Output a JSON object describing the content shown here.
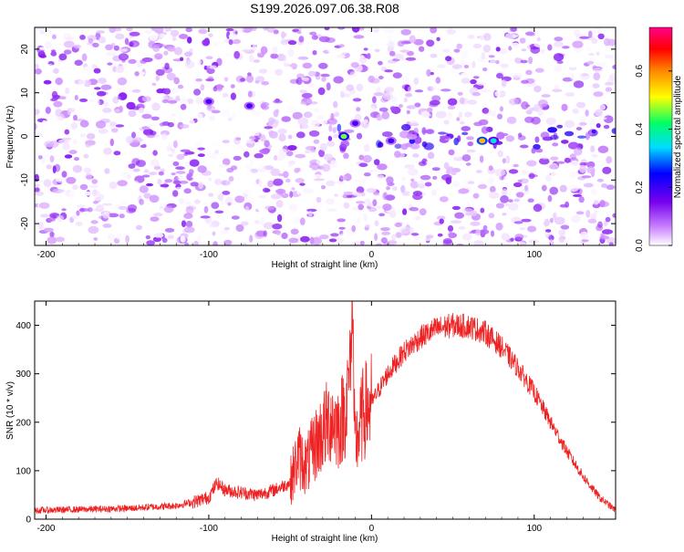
{
  "title": "S199.2026.097.06.38.R08",
  "chart_data": [
    {
      "type": "heatmap",
      "title": "",
      "xlabel": "Height of straight line (km)",
      "ylabel": "Frequency (Hz)",
      "xlim": [
        -207,
        150
      ],
      "ylim": [
        -25,
        25
      ],
      "x_ticks": [
        -200,
        -100,
        0,
        100
      ],
      "y_ticks": [
        -20,
        -10,
        0,
        10,
        20
      ],
      "colorbar": {
        "label": "Normalized spectral amplitude",
        "range": [
          0.0,
          0.75
        ],
        "ticks": [
          0.0,
          0.2,
          0.4,
          0.6
        ],
        "tick_labels": [
          "0.0",
          "0.2",
          "0.4",
          "0.6"
        ],
        "colors": [
          "#ffffff",
          "#cc88ff",
          "#7700ee",
          "#0000ff",
          "#00ddff",
          "#00ff66",
          "#ffff00",
          "#ff8800",
          "#ff0000",
          "#ff0088"
        ]
      },
      "features": [
        {
          "x": -17,
          "y": 0,
          "amplitude": 0.45
        },
        {
          "x": -10,
          "y": 3,
          "amplitude": 0.2
        },
        {
          "x": 68,
          "y": -1,
          "amplitude": 0.55
        },
        {
          "x": 75,
          "y": -1,
          "amplitude": 0.35
        },
        {
          "x": -100,
          "y": 8,
          "amplitude": 0.2
        },
        {
          "x": -75,
          "y": 7,
          "amplitude": 0.2
        },
        {
          "x": 12,
          "y": -1,
          "amplitude": 0.2
        }
      ]
    },
    {
      "type": "line",
      "title": "",
      "xlabel": "Height of straight line (km)",
      "ylabel": "SNR (10 * v/v)",
      "xlim": [
        -207,
        150
      ],
      "ylim": [
        0,
        450
      ],
      "x_ticks": [
        -200,
        -100,
        0,
        100
      ],
      "y_ticks": [
        0,
        100,
        200,
        300,
        400
      ],
      "series": [
        {
          "color": "#ee2222",
          "x": [
            -207,
            -180,
            -150,
            -120,
            -110,
            -100,
            -95,
            -90,
            -80,
            -70,
            -60,
            -50,
            -45,
            -40,
            -35,
            -30,
            -25,
            -20,
            -15,
            -12,
            -10,
            -5,
            0,
            5,
            10,
            20,
            30,
            40,
            50,
            60,
            70,
            80,
            90,
            100,
            110,
            120,
            130,
            140,
            150
          ],
          "y": [
            18,
            20,
            22,
            28,
            35,
            45,
            75,
            60,
            55,
            50,
            60,
            75,
            130,
            110,
            150,
            180,
            210,
            190,
            240,
            420,
            150,
            220,
            240,
            270,
            300,
            345,
            375,
            393,
            400,
            398,
            385,
            355,
            312,
            262,
            200,
            140,
            88,
            45,
            18
          ]
        }
      ]
    }
  ]
}
